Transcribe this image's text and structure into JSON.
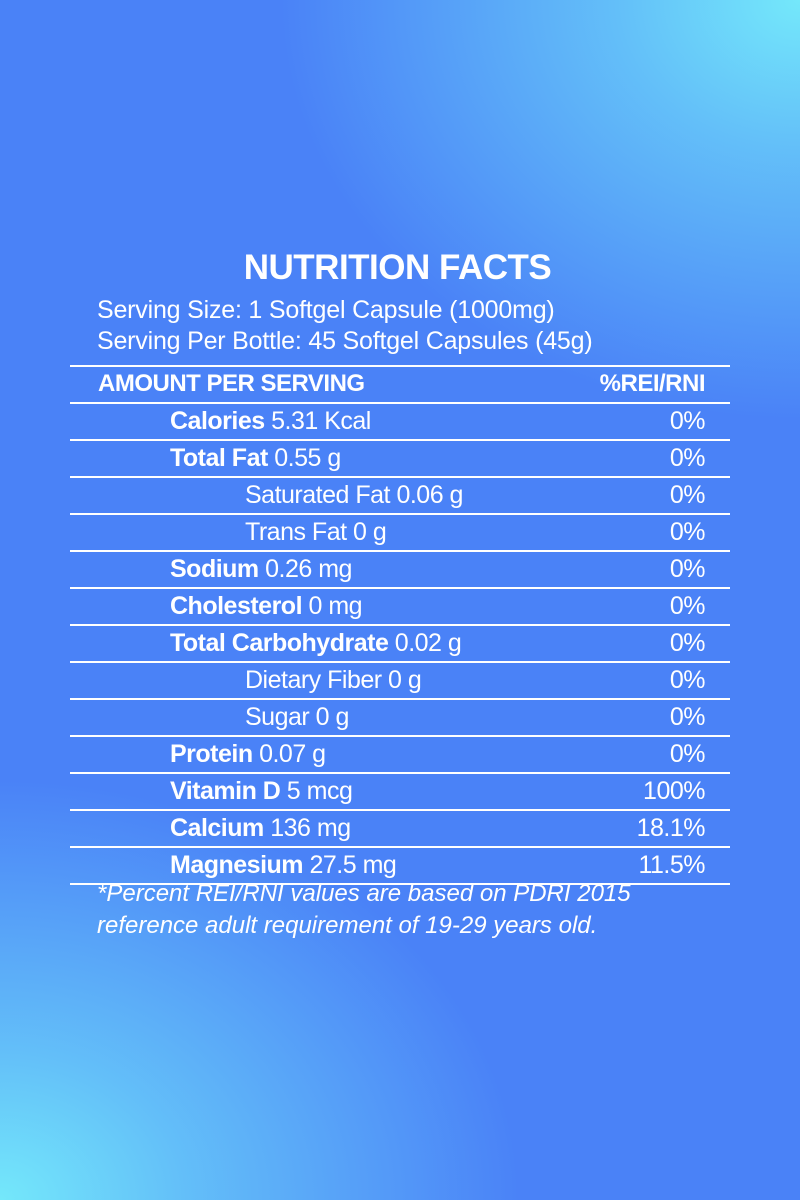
{
  "title": "NUTRITION FACTS",
  "serving_size": "Serving Size: 1 Softgel Capsule (1000mg)",
  "servings_per_bottle": "Serving Per Bottle: 45 Softgel Capsules (45g)",
  "header": {
    "amount": "AMOUNT PER SERVING",
    "percent": "%REI/RNI"
  },
  "rows": [
    {
      "name": "Calories",
      "amount": "5.31 Kcal",
      "percent": "0%",
      "bold": true,
      "level": 1
    },
    {
      "name": "Total Fat",
      "amount": "0.55 g",
      "percent": "0%",
      "bold": true,
      "level": 1
    },
    {
      "name": "Saturated Fat",
      "amount": "0.06 g",
      "percent": "0%",
      "bold": false,
      "level": 2
    },
    {
      "name": "Trans Fat",
      "amount": "0 g",
      "percent": "0%",
      "bold": false,
      "level": 2
    },
    {
      "name": "Sodium",
      "amount": "0.26 mg",
      "percent": "0%",
      "bold": true,
      "level": 1
    },
    {
      "name": "Cholesterol",
      "amount": "0 mg",
      "percent": "0%",
      "bold": true,
      "level": 1
    },
    {
      "name": "Total Carbohydrate",
      "amount": "0.02 g",
      "percent": "0%",
      "bold": true,
      "level": 1
    },
    {
      "name": "Dietary Fiber",
      "amount": "0 g",
      "percent": "0%",
      "bold": false,
      "level": 2
    },
    {
      "name": "Sugar",
      "amount": "0 g",
      "percent": "0%",
      "bold": false,
      "level": 2
    },
    {
      "name": "Protein",
      "amount": "0.07 g",
      "percent": "0%",
      "bold": true,
      "level": 1
    },
    {
      "name": "Vitamin D",
      "amount": "5 mcg",
      "percent": "100%",
      "bold": true,
      "level": 1
    },
    {
      "name": "Calcium",
      "amount": "136 mg",
      "percent": "18.1%",
      "bold": true,
      "level": 1
    },
    {
      "name": "Magnesium",
      "amount": "27.5 mg",
      "percent": "11.5%",
      "bold": true,
      "level": 1
    }
  ],
  "footnote": [
    "*Percent REI/RNI values are based on PDRI 2015",
    "reference adult requirement of 19-29 years old."
  ],
  "colors": {
    "background_blue": "#4a82f7",
    "background_cyan": "#74e8fa",
    "text": "#ffffff"
  }
}
